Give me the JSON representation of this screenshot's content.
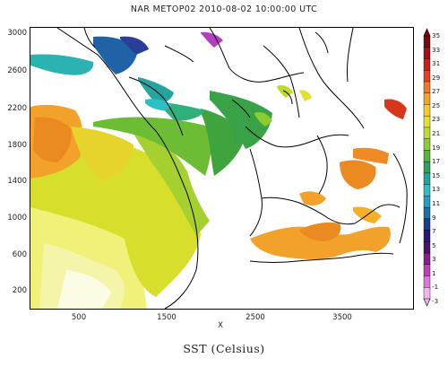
{
  "title": "NAR METOP02 2010-08-02 10:00:00 UTC",
  "bottom_title": "SST (Celsius)",
  "x_axis_name": "X",
  "y_tick_labels": [
    "3000",
    "2600",
    "2200",
    "1800",
    "1400",
    "1000",
    "600",
    "200"
  ],
  "x_tick_labels": [
    "500",
    "1500",
    "2500",
    "3500"
  ],
  "colorbar": {
    "labels": [
      "35",
      "33",
      "31",
      "29",
      "27",
      "25",
      "23",
      "21",
      "19",
      "17",
      "15",
      "13",
      "11",
      "9",
      "7",
      "5",
      "3",
      "1",
      "-1",
      "-3"
    ],
    "colors": [
      "#7a0a0a",
      "#a00f1a",
      "#c8201c",
      "#e8401c",
      "#f07a22",
      "#f5a524",
      "#f3cb2a",
      "#e2e22c",
      "#bfdc2e",
      "#8ccc30",
      "#4fb83c",
      "#2aa45a",
      "#22a89a",
      "#2bc0c4",
      "#22a0c0",
      "#1872a8",
      "#1a3c90",
      "#281a70",
      "#4a146a",
      "#8a1e8c",
      "#c040b8",
      "#dc78d8",
      "#f0b4f0"
    ]
  },
  "colors": {
    "warm": "#f2a12a",
    "hot": "#e8621c",
    "yellow": "#e6e22c",
    "pale_yellow": "#eef06a",
    "green": "#78c032",
    "dark_green": "#2f9a3c",
    "teal": "#2ab3b0",
    "blue": "#1f62a8",
    "purple": "#b13fc0",
    "coast": "#000000"
  }
}
